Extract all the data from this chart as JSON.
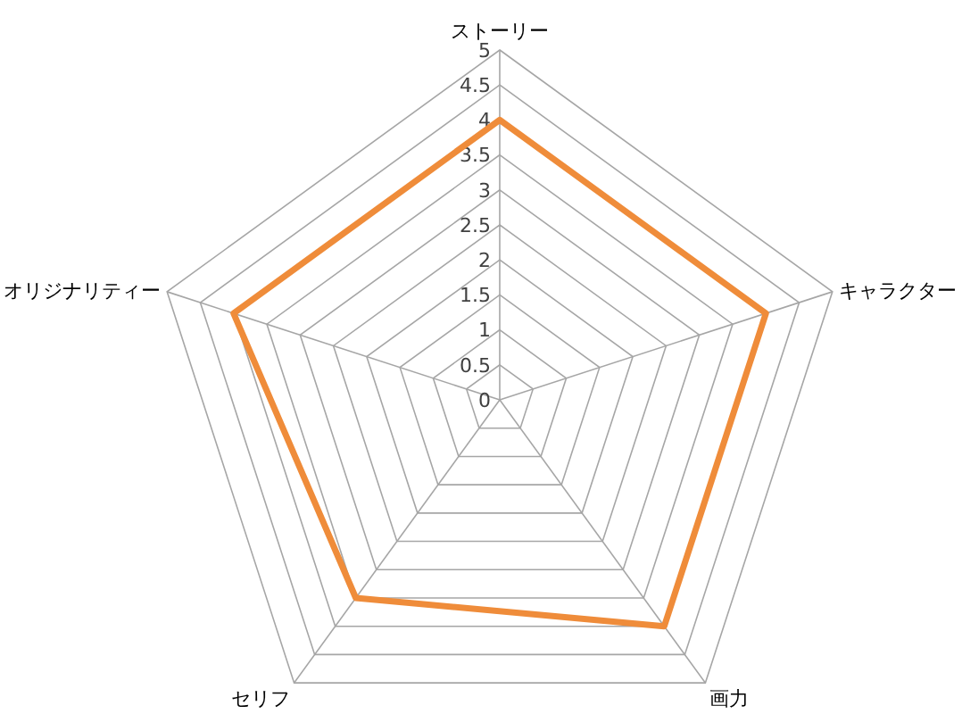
{
  "chart_data": {
    "type": "radar",
    "categories": [
      "ストーリー",
      "キャラクター",
      "画力",
      "セリフ",
      "オリジナリティー"
    ],
    "series": [
      {
        "color": "#ef8c3a",
        "values": [
          4,
          4,
          4,
          3.5,
          4
        ]
      }
    ],
    "ylim": [
      0,
      5
    ],
    "yticks": [
      0,
      0.5,
      1,
      1.5,
      2,
      2.5,
      3,
      3.5,
      4,
      4.5,
      5
    ],
    "grid": true,
    "marker": "none",
    "line_style": "solid"
  }
}
